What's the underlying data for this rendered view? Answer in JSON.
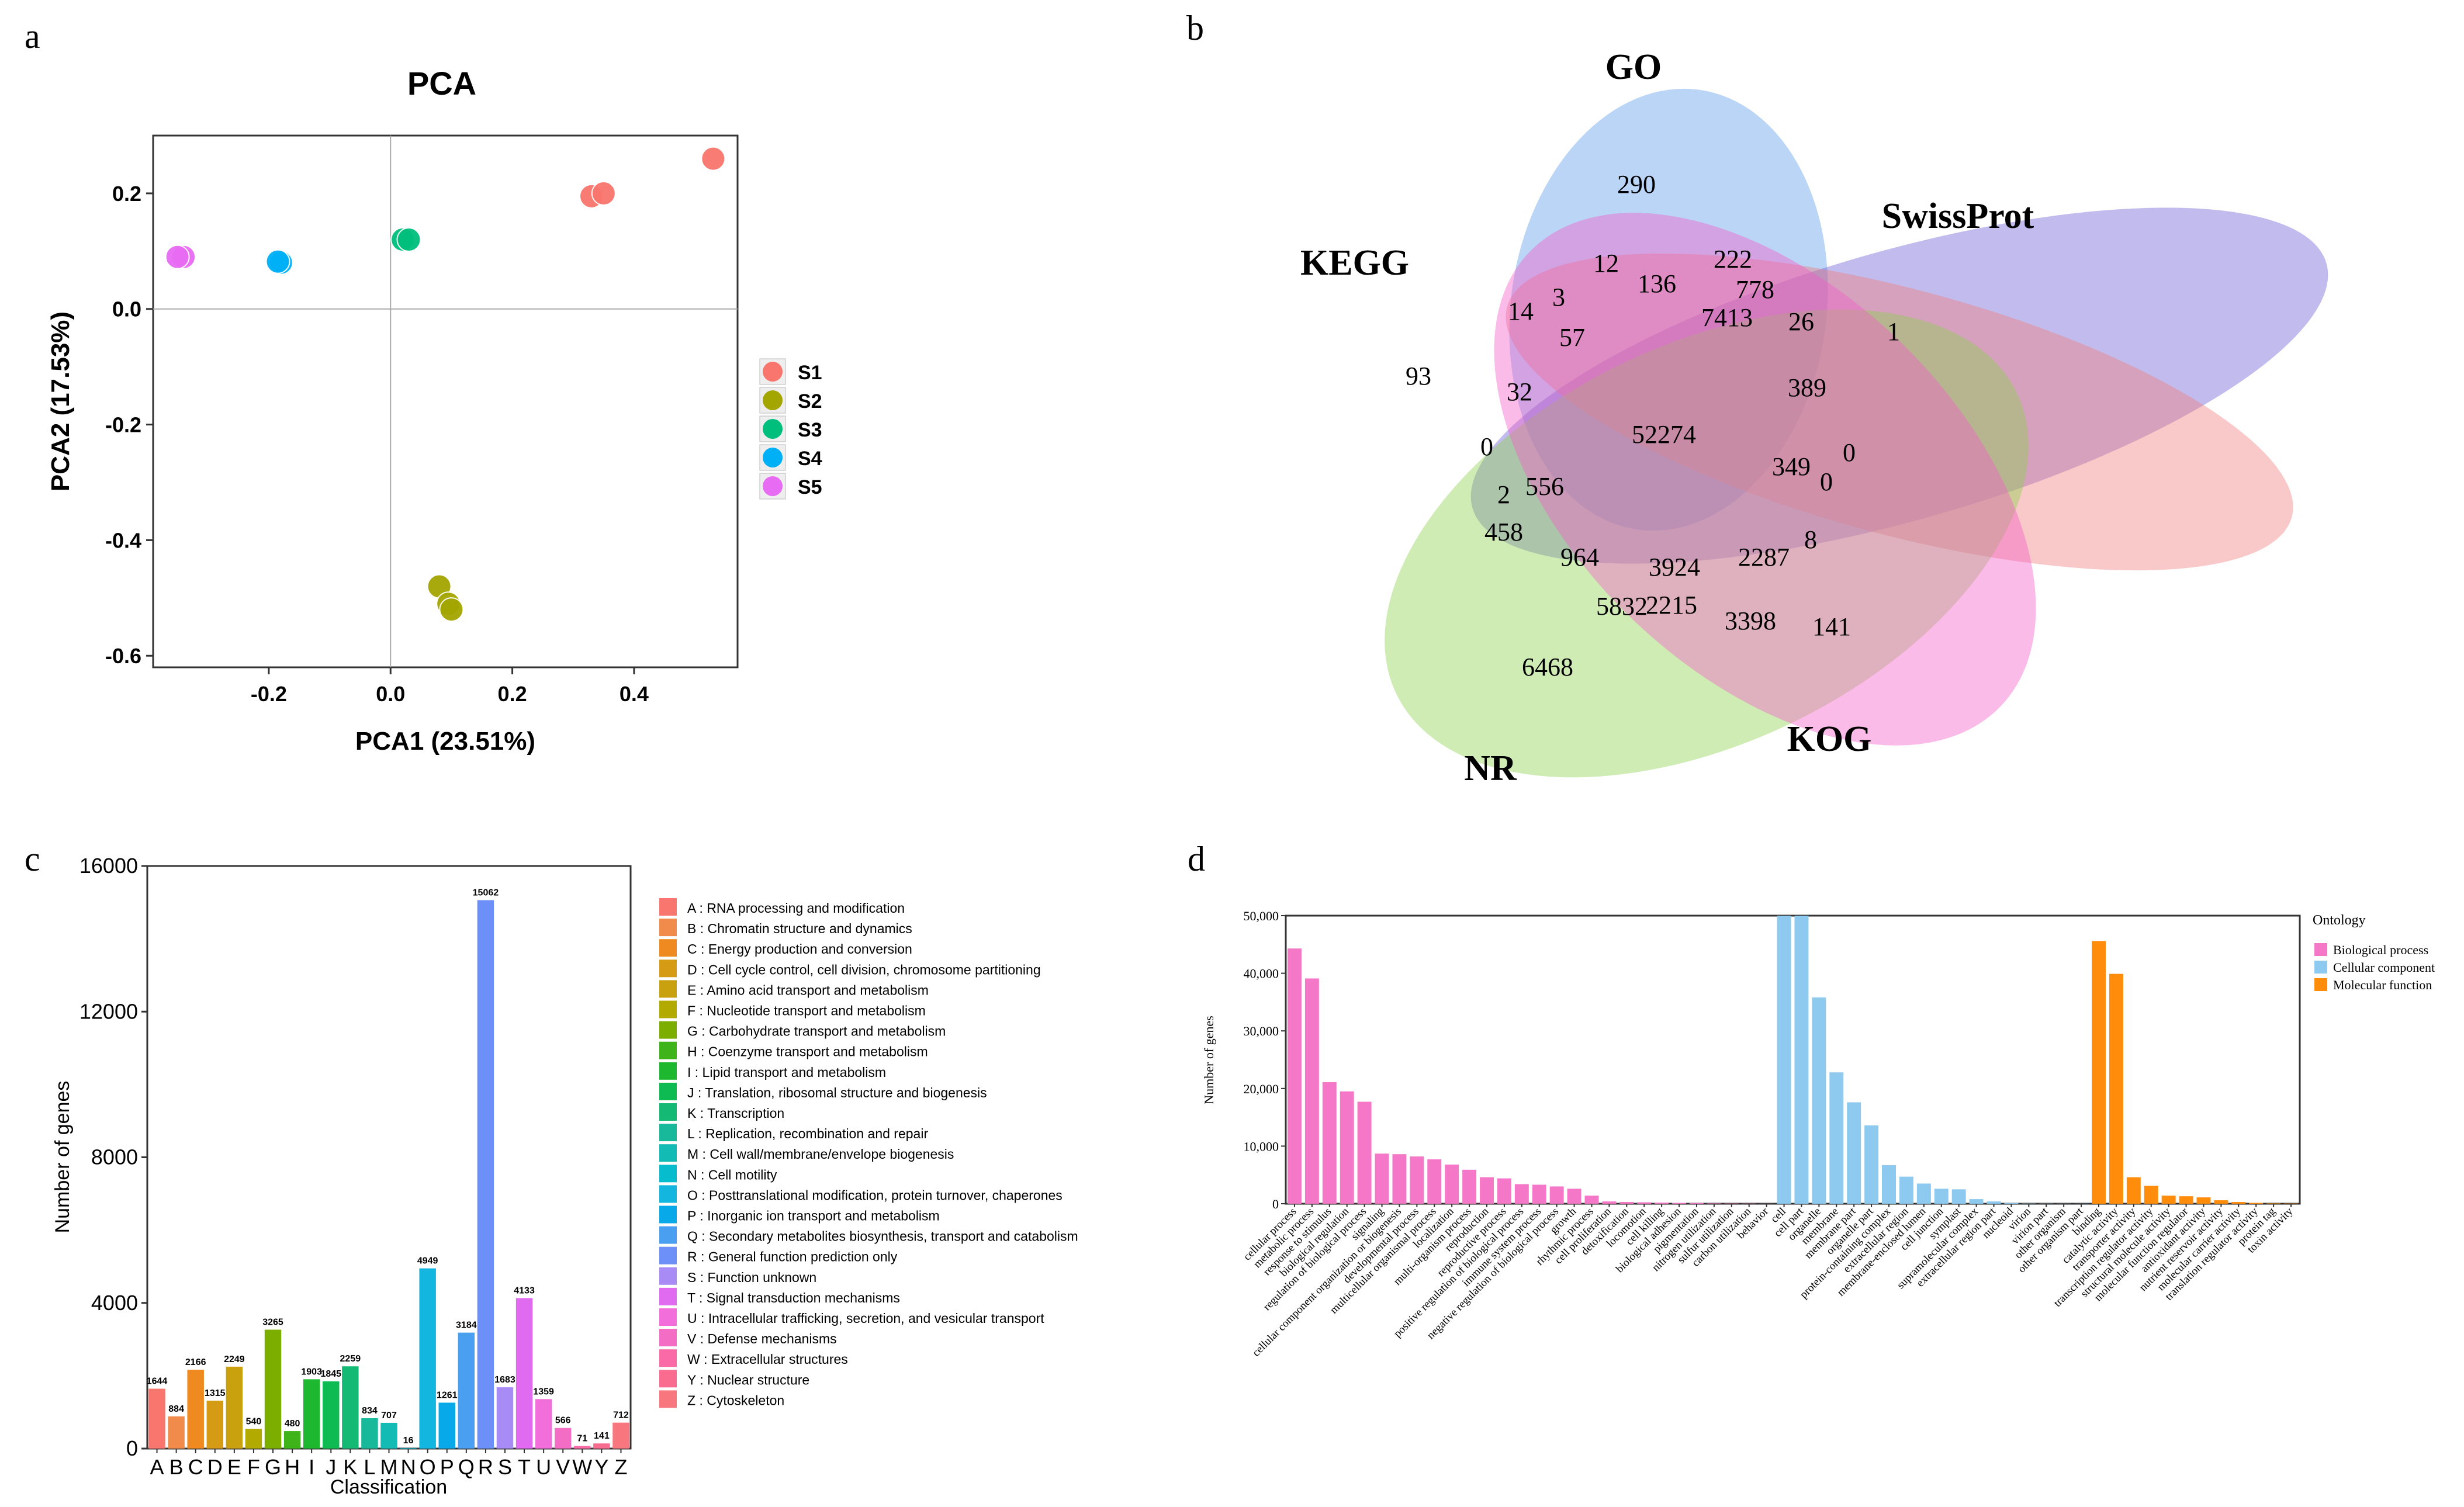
{
  "chart_data": [
    {
      "panel": "a",
      "type": "scatter",
      "title": "PCA",
      "xlabel": "PCA1 (23.51%)",
      "ylabel": "PCA2 (17.53%)",
      "xlim": [
        -0.39,
        0.57
      ],
      "ylim": [
        -0.62,
        0.3
      ],
      "xticks": [
        -0.2,
        0.0,
        0.2,
        0.4
      ],
      "xtick_labels": [
        "-0.2",
        "0.0",
        "0.2",
        "0.4"
      ],
      "yticks": [
        0.2,
        0.0,
        -0.2,
        -0.4,
        -0.6
      ],
      "ytick_labels": [
        "0.2",
        "0.0",
        "-0.2",
        "-0.4",
        "-0.6"
      ],
      "series": [
        {
          "name": "S1",
          "color": "#F8766D",
          "points": [
            [
              0.33,
              0.195
            ],
            [
              0.35,
              0.2
            ],
            [
              0.53,
              0.26
            ]
          ]
        },
        {
          "name": "S2",
          "color": "#A3A500",
          "points": [
            [
              0.08,
              -0.48
            ],
            [
              0.095,
              -0.51
            ],
            [
              0.1,
              -0.52
            ]
          ]
        },
        {
          "name": "S3",
          "color": "#00BF7D",
          "points": [
            [
              0.02,
              0.12
            ],
            [
              0.03,
              0.12
            ]
          ]
        },
        {
          "name": "S4",
          "color": "#00B0F6",
          "points": [
            [
              -0.18,
              0.08
            ],
            [
              -0.185,
              0.082
            ]
          ]
        },
        {
          "name": "S5",
          "color": "#E76BF3",
          "points": [
            [
              -0.34,
              0.09
            ],
            [
              -0.35,
              0.09
            ]
          ]
        }
      ]
    },
    {
      "panel": "b",
      "type": "venn",
      "sets": [
        {
          "name": "GO",
          "color": "#5B9BE6"
        },
        {
          "name": "SwissProt",
          "color": "#6B5FD3"
        },
        {
          "name": "KEGG",
          "color": "#F07C7C"
        },
        {
          "name": "NR",
          "color": "#8FD14F"
        },
        {
          "name": "KOG",
          "color": "#F25CC7"
        }
      ],
      "region_labels": [
        "290",
        "222",
        "12",
        "136",
        "778",
        "14",
        "3",
        "7413",
        "26",
        "1",
        "93",
        "57",
        "389",
        "32",
        "52274",
        "0",
        "349",
        "0",
        "0",
        "2",
        "556",
        "8",
        "458",
        "964",
        "3924",
        "2287",
        "5832",
        "2215",
        "3398",
        "141",
        "6468"
      ]
    },
    {
      "panel": "c",
      "type": "bar",
      "title": "",
      "xlabel": "Classification",
      "ylabel": "Number of genes",
      "ylim": [
        0,
        16000
      ],
      "yticks": [
        0,
        4000,
        8000,
        12000,
        16000
      ],
      "ytick_labels": [
        "0",
        "4000",
        "8000",
        "12000",
        "16000"
      ],
      "categories": [
        "A",
        "B",
        "C",
        "D",
        "E",
        "F",
        "G",
        "H",
        "I",
        "J",
        "K",
        "L",
        "M",
        "N",
        "O",
        "P",
        "Q",
        "R",
        "S",
        "T",
        "U",
        "V",
        "W",
        "Y",
        "Z"
      ],
      "values": [
        1644,
        884,
        2166,
        1315,
        2249,
        540,
        3265,
        480,
        1903,
        1845,
        2259,
        834,
        707,
        16,
        4949,
        1261,
        3184,
        15062,
        1683,
        4133,
        1359,
        566,
        71,
        141,
        712
      ],
      "value_labels": [
        "1644",
        "884",
        "2166",
        "1315",
        "2249",
        "540",
        "3265",
        "480",
        "1903",
        "1845",
        "2259",
        "834",
        "707",
        "16",
        "4949",
        "1261",
        "3184",
        "15062",
        "1683",
        "4133",
        "1359",
        "566",
        "71",
        "141",
        "712"
      ],
      "colors": [
        "#F8766D",
        "#F08B4C",
        "#EE8A1F",
        "#D69B14",
        "#C9A10F",
        "#B3AA00",
        "#7CAE00",
        "#3FB41A",
        "#1DB82F",
        "#0EBB52",
        "#14BA74",
        "#17B99A",
        "#13BBB5",
        "#07BCCC",
        "#13B6DF",
        "#08A9E8",
        "#4A9FF0",
        "#6C8FF8",
        "#A88BF5",
        "#E06BF0",
        "#F16EDB",
        "#F46DC5",
        "#F96AA6",
        "#FA6B90",
        "#F8767D"
      ],
      "legend": [
        "A : RNA processing and modification",
        "B : Chromatin structure and dynamics",
        "C : Energy production and conversion",
        "D : Cell cycle control, cell division, chromosome partitioning",
        "E : Amino acid transport and metabolism",
        "F : Nucleotide transport and metabolism",
        "G : Carbohydrate transport and metabolism",
        "H : Coenzyme transport and metabolism",
        "I : Lipid transport and metabolism",
        "J : Translation, ribosomal structure and biogenesis",
        "K : Transcription",
        "L : Replication, recombination and repair",
        "M : Cell wall/membrane/envelope biogenesis",
        "N : Cell motility",
        "O : Posttranslational modification, protein turnover, chaperones",
        "P : Inorganic ion transport and metabolism",
        "Q : Secondary metabolites biosynthesis, transport and catabolism",
        "R : General function prediction only",
        "S : Function unknown",
        "T : Signal transduction mechanisms",
        "U : Intracellular trafficking, secretion, and vesicular transport",
        "V : Defense mechanisms",
        "W : Extracellular structures",
        "Y : Nuclear structure",
        "Z : Cytoskeleton"
      ]
    },
    {
      "panel": "d",
      "type": "bar",
      "title": "",
      "xlabel": "",
      "ylabel": "Number of genes",
      "ylim": [
        0,
        50000
      ],
      "yticks": [
        0,
        10000,
        20000,
        30000,
        40000,
        50000
      ],
      "ytick_labels": [
        "0",
        "10,000",
        "20,000",
        "30,000",
        "40,000",
        "50,000"
      ],
      "legend_title": "Ontology",
      "series": [
        {
          "name": "Biological process",
          "color": "#F577C8",
          "categories": [
            "cellular process",
            "metabolic process",
            "response to stimulus",
            "biological regulation",
            "regulation of biological process",
            "signaling",
            "cellular component organization or biogenesis",
            "developmental process",
            "multicellular organismal process",
            "localization",
            "multi-organism process",
            "reproduction",
            "reproductive process",
            "positive regulation of biological process",
            "immune system process",
            "negative regulation of biological process",
            "growth",
            "rhythmic process",
            "cell proliferation",
            "detoxification",
            "locomotion",
            "cell killing",
            "biological adhesion",
            "pigmentation",
            "nitrogen utilization",
            "sulfur utilization",
            "carbon utilization",
            "behavior"
          ],
          "values": [
            44300,
            39100,
            21100,
            19500,
            17700,
            8700,
            8600,
            8200,
            7700,
            6800,
            5900,
            4600,
            4400,
            3400,
            3300,
            3000,
            2600,
            1400,
            400,
            300,
            250,
            200,
            150,
            120,
            60,
            40,
            30,
            20
          ]
        },
        {
          "name": "Cellular component",
          "color": "#8EC9EF",
          "categories": [
            "cell",
            "cell part",
            "organelle",
            "membrane",
            "membrane part",
            "organelle part",
            "protein-containing complex",
            "extracellular region",
            "membrane-enclosed lumen",
            "cell junction",
            "symplast",
            "supramolecular complex",
            "extracellular region part",
            "nucleoid",
            "virion",
            "virion part",
            "other organism",
            "other organism part"
          ],
          "values": [
            50000,
            50000,
            35800,
            22800,
            17600,
            13600,
            6700,
            4700,
            3500,
            2600,
            2500,
            800,
            400,
            120,
            40,
            30,
            20,
            15
          ]
        },
        {
          "name": "Molecular function",
          "color": "#FF8C0A",
          "categories": [
            "binding",
            "catalytic activity",
            "transporter activity",
            "transcription regulator activity",
            "structural molecule activity",
            "molecular function regulator",
            "antioxidant activity",
            "nutrient reservoir activity",
            "molecular carrier activity",
            "translation regulator activity",
            "protein tag",
            "toxin activity"
          ],
          "values": [
            45600,
            39900,
            4600,
            3100,
            1400,
            1300,
            1100,
            600,
            300,
            150,
            60,
            40
          ]
        }
      ]
    }
  ],
  "panels": {
    "a": "a",
    "b": "b",
    "c": "c",
    "d": "d"
  }
}
